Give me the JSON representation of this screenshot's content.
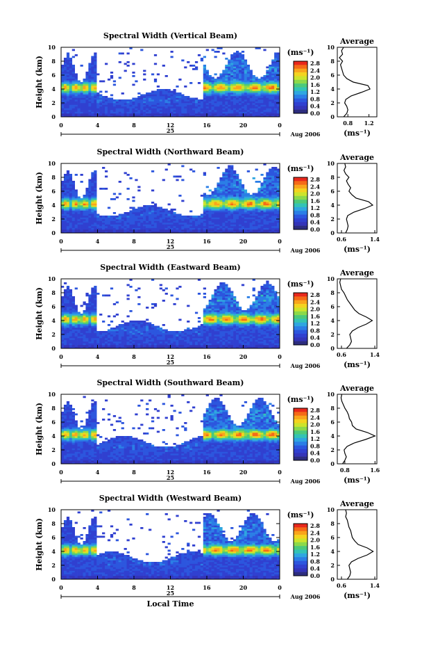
{
  "colorbar_unit": "(ms⁻¹)",
  "colorbar_ticks": [
    "2.8",
    "2.4",
    "2.0",
    "1.6",
    "1.2",
    "0.8",
    "0.4",
    "0.0"
  ],
  "colorbar_colors": [
    "#e8281c",
    "#f56a18",
    "#f9a51c",
    "#f4d31f",
    "#cde42c",
    "#8cd94a",
    "#4cc97a",
    "#33c3b5",
    "#2fa6e0",
    "#2b7ee6",
    "#2c56de",
    "#3040d0",
    "#3434b8",
    "#2d2d7e"
  ],
  "date_label": "Aug 2006",
  "day_label": "25",
  "xlabel_bottom": "Local Time",
  "avg_title": "Average",
  "avg_xlabel": "(ms⁻¹)",
  "ylabel": "Height (km)",
  "chart_data": [
    {
      "type": "heatmap",
      "title": "Spectral Width (Vertical Beam)",
      "ylabel": "Height (km)",
      "x_ticks": [
        "0",
        "4",
        "8",
        "12",
        "16",
        "20",
        "0"
      ],
      "xlim": [
        0,
        24
      ],
      "ylim": [
        0,
        10
      ],
      "y_ticks": [
        "0",
        "2",
        "4",
        "6",
        "8",
        "10"
      ],
      "colorbar_range": [
        0.0,
        2.8
      ],
      "average_profile": {
        "title": "Average",
        "xlabel": "(ms⁻¹)",
        "x_ticks": [
          "0.8",
          "1.2"
        ],
        "xlim": [
          0.6,
          1.35
        ],
        "heights": [
          0,
          0.5,
          1,
          1.5,
          2,
          2.5,
          3,
          3.5,
          4,
          4.5,
          5,
          5.5,
          6,
          6.5,
          7,
          7.5,
          8,
          8.5,
          9,
          9.5,
          10
        ],
        "values": [
          0.72,
          0.78,
          0.8,
          0.78,
          0.74,
          0.76,
          0.86,
          1.05,
          1.22,
          1.18,
          0.9,
          0.78,
          0.72,
          0.7,
          0.68,
          0.66,
          0.7,
          0.64,
          0.7,
          0.68,
          0.72
        ]
      }
    },
    {
      "type": "heatmap",
      "title": "Spectral Width (Northward Beam)",
      "ylabel": "Height (km)",
      "x_ticks": [
        "0",
        "4",
        "8",
        "12",
        "16",
        "20",
        "0"
      ],
      "xlim": [
        0,
        24
      ],
      "ylim": [
        0,
        10
      ],
      "y_ticks": [
        "0",
        "2",
        "4",
        "6",
        "8",
        "10"
      ],
      "colorbar_range": [
        0.0,
        2.8
      ],
      "average_profile": {
        "title": "Average",
        "xlabel": "(ms⁻¹)",
        "x_ticks": [
          "0.6",
          "1.4"
        ],
        "xlim": [
          0.5,
          1.45
        ],
        "heights": [
          0,
          0.5,
          1,
          1.5,
          2,
          2.5,
          3,
          3.5,
          4,
          4.5,
          5,
          5.5,
          6,
          6.5,
          7,
          7.5,
          8,
          8.5,
          9,
          9.5,
          10
        ],
        "values": [
          0.7,
          0.74,
          0.76,
          0.74,
          0.72,
          0.75,
          0.9,
          1.15,
          1.35,
          1.25,
          0.95,
          0.85,
          0.78,
          0.82,
          0.76,
          0.72,
          0.78,
          0.7,
          0.66,
          0.7,
          0.68
        ]
      }
    },
    {
      "type": "heatmap",
      "title": "Spectral Width (Eastward Beam)",
      "ylabel": "Height (km)",
      "x_ticks": [
        "0",
        "4",
        "8",
        "12",
        "16",
        "20",
        "0"
      ],
      "xlim": [
        0,
        24
      ],
      "ylim": [
        0,
        10
      ],
      "y_ticks": [
        "0",
        "2",
        "4",
        "6",
        "8",
        "10"
      ],
      "colorbar_range": [
        0.0,
        2.8
      ],
      "average_profile": {
        "title": "Average",
        "xlabel": "(ms⁻¹)",
        "x_ticks": [
          "0.6",
          "1.4"
        ],
        "xlim": [
          0.5,
          1.45
        ],
        "heights": [
          0,
          0.5,
          1,
          1.5,
          2,
          2.5,
          3,
          3.5,
          4,
          4.5,
          5,
          5.5,
          6,
          6.5,
          7,
          7.5,
          8,
          8.5,
          9,
          9.5,
          10
        ],
        "values": [
          0.72,
          0.8,
          0.84,
          0.82,
          0.8,
          0.86,
          1.0,
          1.2,
          1.34,
          1.2,
          1.02,
          0.92,
          0.86,
          0.8,
          0.74,
          0.7,
          0.66,
          0.6,
          0.58,
          0.56,
          0.58
        ]
      }
    },
    {
      "type": "heatmap",
      "title": "Spectral Width (Southward Beam)",
      "ylabel": "Height (km)",
      "x_ticks": [
        "0",
        "4",
        "8",
        "12",
        "16",
        "20",
        "0"
      ],
      "xlim": [
        0,
        24
      ],
      "ylim": [
        0,
        10
      ],
      "y_ticks": [
        "0",
        "2",
        "4",
        "6",
        "8",
        "10"
      ],
      "colorbar_range": [
        0.0,
        2.8
      ],
      "average_profile": {
        "title": "Average",
        "xlabel": "(ms⁻¹)",
        "x_ticks": [
          "0.8",
          "1.6"
        ],
        "xlim": [
          0.6,
          1.65
        ],
        "heights": [
          0,
          0.5,
          1,
          1.5,
          2,
          2.5,
          3,
          3.5,
          4,
          4.5,
          5,
          5.5,
          6,
          6.5,
          7,
          7.5,
          8,
          8.5,
          9,
          9.5,
          10
        ],
        "values": [
          0.74,
          0.8,
          0.84,
          0.8,
          0.78,
          0.86,
          1.05,
          1.35,
          1.6,
          1.4,
          1.1,
          1.0,
          0.98,
          0.92,
          0.9,
          0.86,
          0.8,
          0.76,
          0.72,
          0.7,
          0.72
        ]
      }
    },
    {
      "type": "heatmap",
      "title": "Spectral Width (Westward Beam)",
      "ylabel": "Height (km)",
      "x_ticks": [
        "0",
        "4",
        "8",
        "12",
        "16",
        "20",
        "0"
      ],
      "xlim": [
        0,
        24
      ],
      "ylim": [
        0,
        10
      ],
      "y_ticks": [
        "0",
        "2",
        "4",
        "6",
        "8",
        "10"
      ],
      "colorbar_range": [
        0.0,
        2.8
      ],
      "average_profile": {
        "title": "Average",
        "xlabel": "(ms⁻¹)",
        "x_ticks": [
          "0.6",
          "1.4"
        ],
        "xlim": [
          0.5,
          1.45
        ],
        "heights": [
          0,
          0.5,
          1,
          1.5,
          2,
          2.5,
          3,
          3.5,
          4,
          4.5,
          5,
          5.5,
          6,
          6.5,
          7,
          7.5,
          8,
          8.5,
          9,
          9.5,
          10
        ],
        "values": [
          0.74,
          0.8,
          0.82,
          0.8,
          0.78,
          0.84,
          1.0,
          1.22,
          1.36,
          1.22,
          1.0,
          0.92,
          0.86,
          0.84,
          0.82,
          0.78,
          0.76,
          0.74,
          0.7,
          0.72,
          0.7
        ]
      }
    }
  ]
}
